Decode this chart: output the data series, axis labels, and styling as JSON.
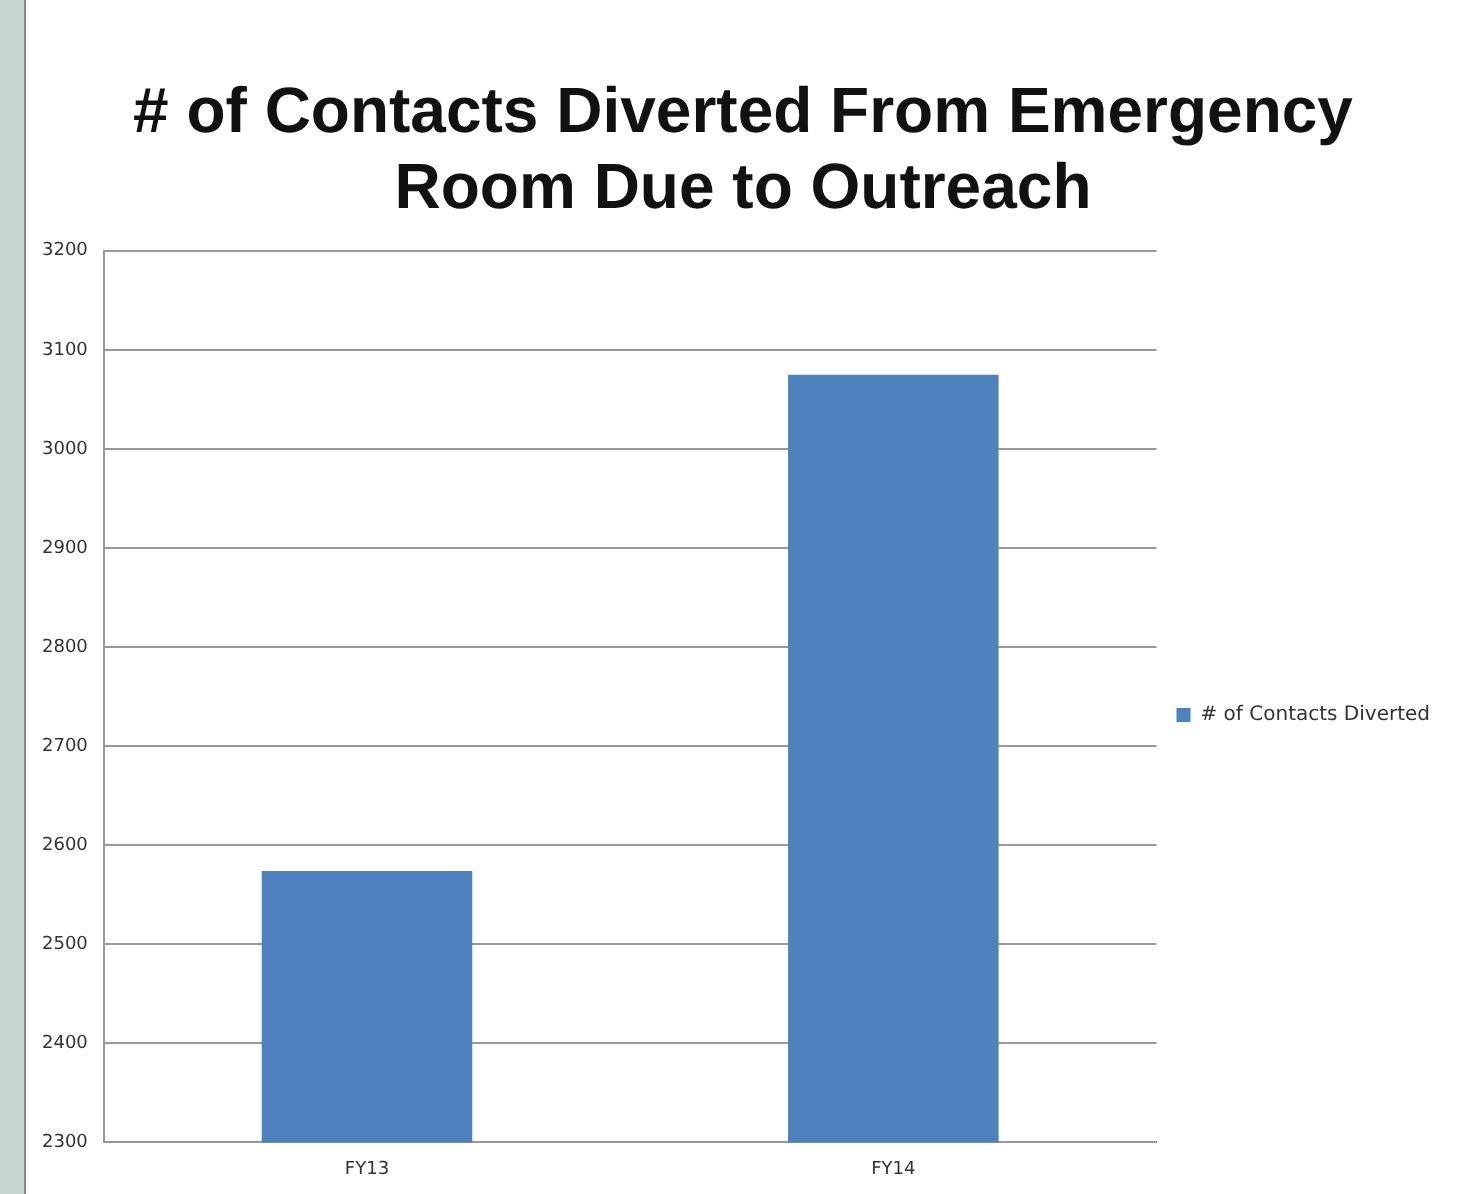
{
  "chart_data": {
    "type": "bar",
    "title": "# of Contacts Diverted From Emergency Room Due to Outreach",
    "categories": [
      "FY13",
      "FY14"
    ],
    "series": [
      {
        "name": "# of Contacts Diverted",
        "color": "#4f81bd",
        "values": [
          2574,
          3075
        ]
      }
    ],
    "ylim": [
      2300,
      3200
    ],
    "yticks": [
      2300,
      2400,
      2500,
      2600,
      2700,
      2800,
      2900,
      3000,
      3100,
      3200
    ],
    "grid": "y",
    "legend": "right"
  }
}
